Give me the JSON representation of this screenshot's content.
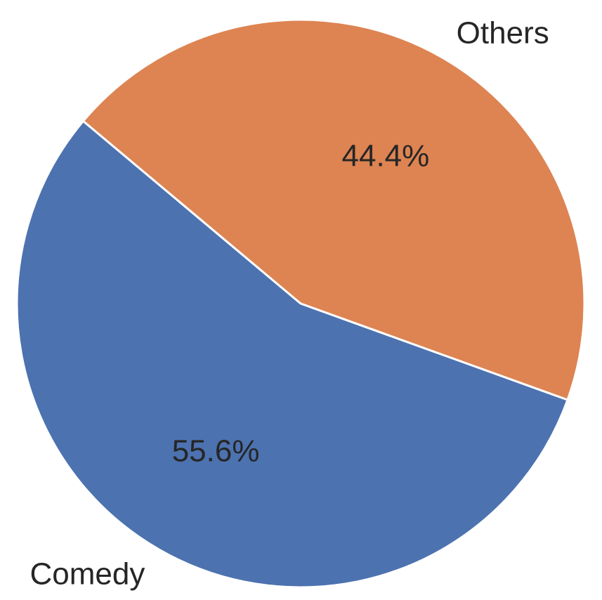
{
  "chart_data": {
    "type": "pie",
    "title": "",
    "categories": [
      "Comedy",
      "Others"
    ],
    "values": [
      55.6,
      44.4
    ],
    "value_labels": [
      "55.6%",
      "44.4%"
    ],
    "colors": [
      "#4c72b0",
      "#dd8452"
    ],
    "text_color": "#262626",
    "edge_color": "#ffffff",
    "start_angle_deg": 140,
    "direction": "counterclockwise",
    "legend": "none"
  }
}
